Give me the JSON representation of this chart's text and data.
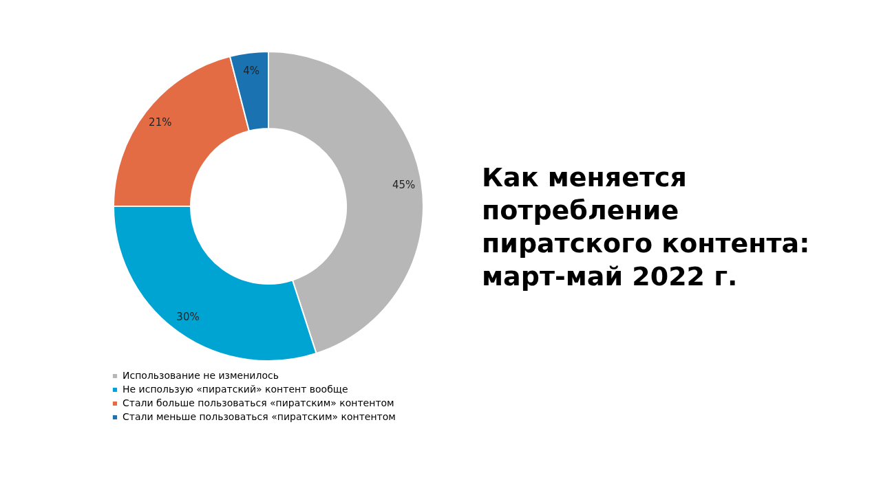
{
  "chart_data": {
    "type": "donut",
    "title": "Как меняется потребление пиратского контента: март-май 2022 г.",
    "categories": [
      "Использование не изменилось",
      "Не использую «пиратский» контент вообще",
      "Стали больше пользоваться «пиратским» контентом",
      "Стали меньше пользоваться «пиратским» контентом"
    ],
    "values": [
      45,
      30,
      21,
      4
    ],
    "colors": [
      "#b7b7b7",
      "#00a4d3",
      "#e46c45",
      "#1a73b0"
    ],
    "value_labels": [
      "45%",
      "30%",
      "21%",
      "4%"
    ],
    "legend": "bottom left"
  }
}
